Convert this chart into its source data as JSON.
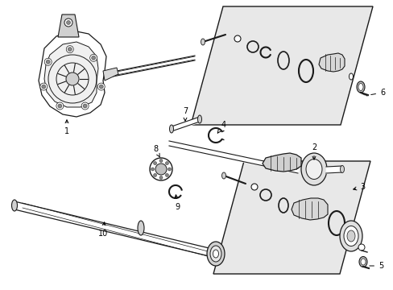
{
  "bg_color": "#ffffff",
  "lc": "#1a1a1a",
  "gray_box": "#e8e8e8",
  "gray_part": "#d0d0d0",
  "white": "#ffffff",
  "figsize": [
    4.89,
    3.6
  ],
  "dpi": 100
}
